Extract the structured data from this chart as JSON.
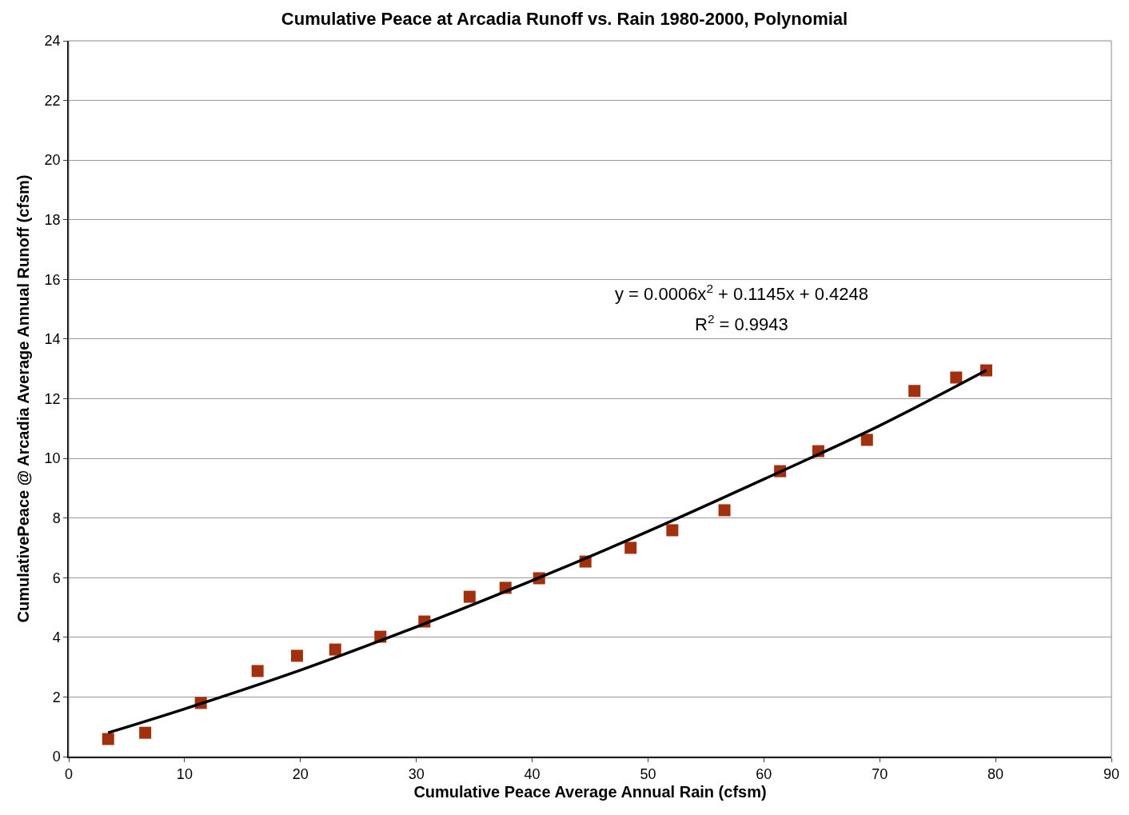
{
  "chart_data": {
    "type": "scatter",
    "title": "Cumulative Peace at Arcadia Runoff vs. Rain 1980-2000, Polynomial",
    "xlabel": "Cumulative Peace Average Annual Rain (cfsm)",
    "ylabel": "CumulativePeace @ Arcadia Average Annual Runoff (cfsm)",
    "xlim": [
      0,
      90
    ],
    "xticks": [
      0,
      10,
      20,
      30,
      40,
      50,
      60,
      70,
      80,
      90
    ],
    "ylim": [
      0,
      24
    ],
    "yticks": [
      0,
      2,
      4,
      6,
      8,
      10,
      12,
      14,
      16,
      18,
      20,
      22,
      24
    ],
    "grid": "y",
    "annotations": [
      "y = 0.0006x$^{2}$ + 0.1145x + 0.4248",
      "R$^{2}$ = 0.9943"
    ],
    "series": [
      {
        "marker": "square",
        "color": "#a0300e",
        "x": [
          3.4,
          6.6,
          11.4,
          16.3,
          19.7,
          23.0,
          26.9,
          30.7,
          34.6,
          37.7,
          40.6,
          44.6,
          48.5,
          52.1,
          56.6,
          61.4,
          64.7,
          68.9,
          73.0,
          76.6,
          79.2
        ],
        "values": [
          0.59,
          0.8,
          1.8,
          2.87,
          3.38,
          3.59,
          4.02,
          4.53,
          5.36,
          5.66,
          5.98,
          6.54,
          7.0,
          7.59,
          8.26,
          9.57,
          10.24,
          10.62,
          12.26,
          12.71,
          12.95
        ]
      },
      {
        "type": "line",
        "color": "#000000",
        "line_style": "solid",
        "x": [
          3.4,
          10,
          20,
          30,
          40,
          50,
          60,
          70,
          79.2
        ],
        "values": [
          0.8,
          1.6,
          2.9,
          4.35,
          5.9,
          7.55,
          9.3,
          11.1,
          12.95
        ]
      }
    ]
  }
}
